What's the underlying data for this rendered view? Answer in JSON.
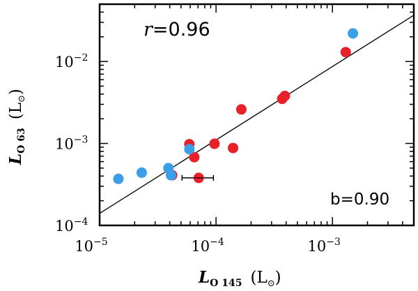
{
  "chart_data": {
    "type": "scatter",
    "xscale": "log",
    "yscale": "log",
    "xlim": [
      1e-05,
      0.005
    ],
    "ylim": [
      0.0001,
      0.05
    ],
    "x_ticks": [
      {
        "value": 1e-05,
        "base": "10",
        "exp": "−5"
      },
      {
        "value": 0.0001,
        "base": "10",
        "exp": "−4"
      },
      {
        "value": 0.001,
        "base": "10",
        "exp": "−3"
      }
    ],
    "y_ticks": [
      {
        "value": 0.0001,
        "base": "10",
        "exp": "−4"
      },
      {
        "value": 0.001,
        "base": "10",
        "exp": "−3"
      },
      {
        "value": 0.01,
        "base": "10",
        "exp": "−2"
      }
    ],
    "xlabel": {
      "main": "L",
      "sub": "O 145",
      "unit": "(L",
      "sun": "⊙",
      "close": ")"
    },
    "ylabel": {
      "main": "L",
      "sub": "O 63",
      "unit": "(L",
      "sun": "⊙",
      "close": ")"
    },
    "annotations": {
      "r_label": "r",
      "r_value": "=0.96",
      "slope_text": "b=0.90"
    },
    "fit_line": {
      "slope": 0.9,
      "points": [
        [
          1e-05,
          0.00014
        ],
        [
          0.005,
          0.0367
        ]
      ]
    },
    "series": [
      {
        "name": "red",
        "color": "#e8202a",
        "points": [
          {
            "x": 5.9e-05,
            "y": 0.00098
          },
          {
            "x": 6.5e-05,
            "y": 0.00068
          },
          {
            "x": 4.2e-05,
            "y": 0.00041
          },
          {
            "x": 9.7e-05,
            "y": 0.00099
          },
          {
            "x": 0.00014,
            "y": 0.00088
          },
          {
            "x": 0.000165,
            "y": 0.0026
          },
          {
            "x": 0.00037,
            "y": 0.0035
          },
          {
            "x": 0.00039,
            "y": 0.0038
          },
          {
            "x": 0.0013,
            "y": 0.013
          },
          {
            "x": 7.1e-05,
            "y": 0.00038,
            "xerr": [
              5.1e-05,
              9.5e-05
            ]
          }
        ]
      },
      {
        "name": "blue",
        "color": "#3a9ee8",
        "points": [
          {
            "x": 1.45e-05,
            "y": 0.00037
          },
          {
            "x": 2.3e-05,
            "y": 0.00044
          },
          {
            "x": 3.9e-05,
            "y": 0.0005
          },
          {
            "x": 4.1e-05,
            "y": 0.00041
          },
          {
            "x": 5.9e-05,
            "y": 0.00085
          },
          {
            "x": 0.0015,
            "y": 0.022
          }
        ]
      }
    ]
  }
}
